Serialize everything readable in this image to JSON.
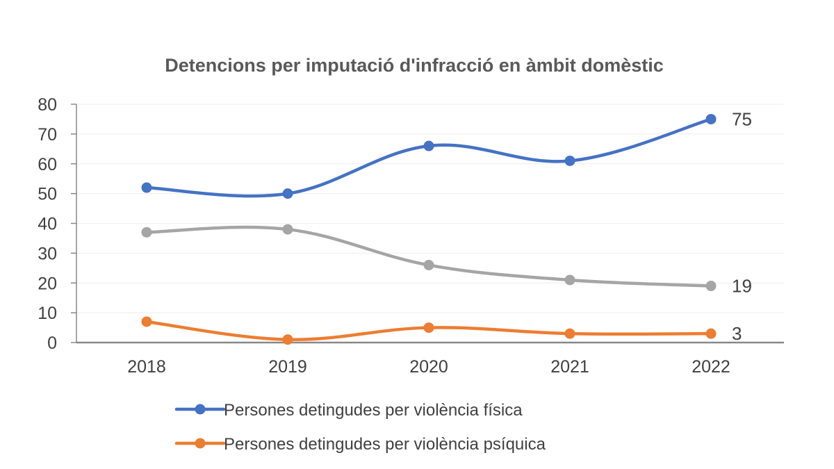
{
  "chart_data": {
    "type": "line",
    "title": "Detencions per imputació d'infracció en àmbit domèstic",
    "xlabel": "",
    "ylabel": "",
    "categories": [
      "2018",
      "2019",
      "2020",
      "2021",
      "2022"
    ],
    "ylim": [
      0,
      80
    ],
    "yticks": [
      "0",
      "10",
      "20",
      "30",
      "40",
      "50",
      "60",
      "70",
      "80"
    ],
    "grid": true,
    "smooth": true,
    "legend_position": "bottom",
    "series": [
      {
        "name": "Persones detingudes per violència física",
        "color": "#4472C4",
        "values": [
          52,
          50,
          66,
          61,
          75
        ],
        "end_label": "75",
        "legend_visible": true
      },
      {
        "name": "Persones detingudes per violència psíquica",
        "color": "#ED7D31",
        "values": [
          7,
          1,
          5,
          3,
          3
        ],
        "end_label": "3",
        "legend_visible": true
      },
      {
        "name": "",
        "color": "#A5A5A5",
        "values": [
          37,
          38,
          26,
          21,
          19
        ],
        "end_label": "19",
        "legend_visible": false
      }
    ]
  }
}
